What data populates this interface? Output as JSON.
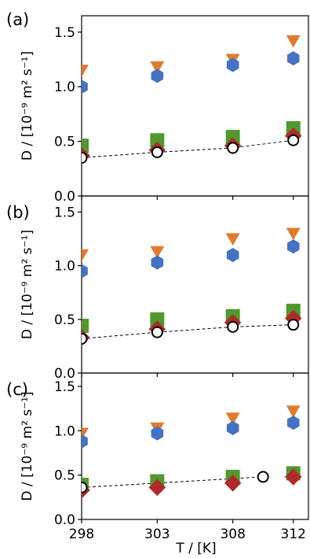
{
  "chart_data": {
    "type": "scatter",
    "panels": [
      {
        "label": "(a)",
        "ylabel": "D / [10⁻⁹ m² s⁻¹]",
        "ylim": [
          0.0,
          1.65
        ],
        "yticks": [
          "0.0",
          "0.5",
          "1.0",
          "1.5"
        ],
        "series": [
          {
            "marker": "triangle-down",
            "color": "#e07b2e",
            "x": [
              298,
              303,
              308,
              312
            ],
            "y": [
              1.15,
              1.18,
              1.25,
              1.42
            ]
          },
          {
            "marker": "hexagon",
            "color": "#4472c4",
            "x": [
              298,
              303,
              308,
              312
            ],
            "y": [
              1.0,
              1.1,
              1.2,
              1.26
            ]
          },
          {
            "marker": "square",
            "color": "#4e9a2c",
            "x": [
              298,
              303,
              308,
              312
            ],
            "y": [
              0.46,
              0.51,
              0.54,
              0.62
            ]
          },
          {
            "marker": "diamond",
            "color": "#b02a2a",
            "x": [
              298,
              303,
              308,
              312
            ],
            "y": [
              0.37,
              0.42,
              0.46,
              0.55
            ]
          },
          {
            "marker": "open-circle",
            "color": "#000000",
            "fit_line": true,
            "x": [
              298,
              303,
              308,
              312
            ],
            "y": [
              0.35,
              0.4,
              0.44,
              0.51
            ]
          }
        ]
      },
      {
        "label": "(b)",
        "ylabel": "D / [10⁻⁹ m² s⁻¹]",
        "ylim": [
          0.0,
          1.65
        ],
        "yticks": [
          "0.0",
          "0.5",
          "1.0",
          "1.5"
        ],
        "series": [
          {
            "marker": "triangle-down",
            "color": "#e07b2e",
            "x": [
              298,
              303,
              308,
              312
            ],
            "y": [
              1.1,
              1.13,
              1.25,
              1.3
            ]
          },
          {
            "marker": "hexagon",
            "color": "#4472c4",
            "x": [
              298,
              303,
              308,
              312
            ],
            "y": [
              0.95,
              1.03,
              1.1,
              1.18
            ]
          },
          {
            "marker": "square",
            "color": "#4e9a2c",
            "x": [
              298,
              303,
              308,
              312
            ],
            "y": [
              0.44,
              0.5,
              0.53,
              0.58
            ]
          },
          {
            "marker": "diamond",
            "color": "#b02a2a",
            "x": [
              298,
              303,
              308,
              312
            ],
            "y": [
              0.33,
              0.41,
              0.47,
              0.51
            ]
          },
          {
            "marker": "open-circle",
            "color": "#000000",
            "fit_line": true,
            "x": [
              298,
              303,
              308,
              312
            ],
            "y": [
              0.32,
              0.38,
              0.43,
              0.45
            ]
          }
        ]
      },
      {
        "label": "(c)",
        "ylabel": "D / [10⁻⁹ m² s⁻¹]",
        "ylim": [
          0.0,
          1.65
        ],
        "yticks": [
          "0.0",
          "0.5",
          "1.0",
          "1.5"
        ],
        "series": [
          {
            "marker": "triangle-down",
            "color": "#e07b2e",
            "x": [
              298,
              303,
              308,
              312
            ],
            "y": [
              0.97,
              1.03,
              1.14,
              1.22
            ]
          },
          {
            "marker": "hexagon",
            "color": "#4472c4",
            "x": [
              298,
              303,
              308,
              312
            ],
            "y": [
              0.88,
              0.97,
              1.03,
              1.09
            ]
          },
          {
            "marker": "square",
            "color": "#4e9a2c",
            "x": [
              298,
              303,
              308,
              312
            ],
            "y": [
              0.39,
              0.43,
              0.48,
              0.52
            ]
          },
          {
            "marker": "diamond",
            "color": "#b02a2a",
            "x": [
              298,
              303,
              308,
              312
            ],
            "y": [
              0.33,
              0.36,
              0.41,
              0.48
            ]
          },
          {
            "marker": "open-circle",
            "color": "#000000",
            "fit_line": true,
            "x": [
              298,
              310
            ],
            "y": [
              0.36,
              0.48
            ]
          }
        ]
      }
    ],
    "xlabel": "T / [K]",
    "xlim": [
      298,
      313
    ],
    "xticks": [
      "298",
      "303",
      "308",
      "312"
    ]
  }
}
